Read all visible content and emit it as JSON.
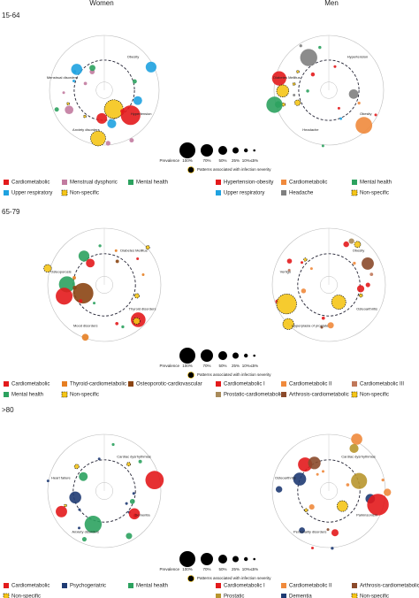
{
  "headers": {
    "women": "Women",
    "men": "Men"
  },
  "panels": [
    {
      "age": "15-64",
      "size_legend": {
        "title": "Prevalence",
        "labels": [
          "100%",
          "70%",
          "50%",
          "25%",
          "10%",
          "≤5%"
        ],
        "severity": "Patterns associated with infection severity"
      },
      "women": {
        "legend": [
          {
            "label": "Cardiometabolic",
            "color": "#e31a1c"
          },
          {
            "label": "Menstrual dysphoric",
            "color": "#c27ba0"
          },
          {
            "label": "Mental health",
            "color": "#2ca25f"
          },
          {
            "label": "Upper respiratory",
            "color": "#1fa2e0"
          },
          {
            "label": "Non-specific",
            "color": "#f5c518"
          }
        ],
        "nodes": [
          "Obesity",
          "Hypertension",
          "Anxiety disorders",
          "Menstrual disorders"
        ]
      },
      "men": {
        "legend": [
          {
            "label": "Hypertension-obesity",
            "color": "#e31a1c"
          },
          {
            "label": "Cardiometabolic",
            "color": "#f08a3c"
          },
          {
            "label": "Mental health",
            "color": "#2ca25f"
          },
          {
            "label": "Upper respiratory",
            "color": "#1fa2e0"
          },
          {
            "label": "Headache",
            "color": "#7f7f7f"
          },
          {
            "label": "Non-specific",
            "color": "#f5c518"
          }
        ],
        "nodes": [
          "Hypertension",
          "Obesity",
          "Headache",
          "Diabetes Mellitus"
        ]
      }
    },
    {
      "age": "65-79",
      "size_legend": {
        "title": "Prevalence",
        "labels": [
          "100%",
          "70%",
          "50%",
          "25%",
          "10%",
          "≤5%"
        ],
        "severity": "Patterns associated with infection severity"
      },
      "women": {
        "legend": [
          {
            "label": "Cardiometabolic",
            "color": "#e31a1c"
          },
          {
            "label": "Thyroid-cardiometabolic",
            "color": "#e67e22"
          },
          {
            "label": "Osteoporotic-cardiovascular",
            "color": "#8b4513"
          },
          {
            "label": "Mental health",
            "color": "#2ca25f"
          },
          {
            "label": "Non-specific",
            "color": "#f5c518"
          }
        ],
        "nodes": [
          "Diabetes Mellitus",
          "Thyroid disorders",
          "Mood disorders",
          "Osteoporosis"
        ]
      },
      "men": {
        "legend": [
          {
            "label": "Cardiometabolic I",
            "color": "#e31a1c"
          },
          {
            "label": "Cardiometabolic II",
            "color": "#f08a3c"
          },
          {
            "label": "Cardiometabolic III",
            "color": "#c0785a"
          },
          {
            "label": "Prostatic-cardiometabolic",
            "color": "#a88a5a"
          },
          {
            "label": "Arthrosis-cardiometabolic",
            "color": "#8b4a2b"
          },
          {
            "label": "Non-specific",
            "color": "#f5c518"
          }
        ],
        "nodes": [
          "Obesity",
          "Osteoarthritis",
          "Hyperplasia of prostate",
          "Vertigo"
        ]
      }
    },
    {
      "age": ">80",
      "size_legend": {
        "title": "Prevalence",
        "labels": [
          "100%",
          "70%",
          "50%",
          "25%",
          "10%",
          "≤5%"
        ],
        "severity": "Patterns associated with infection severity"
      },
      "women": {
        "legend": [
          {
            "label": "Cardiometabolic",
            "color": "#e31a1c"
          },
          {
            "label": "Psychogeriatric",
            "color": "#1f3b73"
          },
          {
            "label": "Mental health",
            "color": "#2ca25f"
          },
          {
            "label": "Non-specific",
            "color": "#f5c518"
          }
        ],
        "nodes": [
          "Cardiac dysrhythmias",
          "Dementia",
          "Anxiety disorders",
          "Heart failure"
        ]
      },
      "men": {
        "legend": [
          {
            "label": "Cardiometabolic I",
            "color": "#e31a1c"
          },
          {
            "label": "Cardiometabolic II",
            "color": "#f08a3c"
          },
          {
            "label": "Arthrosis-cardiometabolic",
            "color": "#8b4a2b"
          },
          {
            "label": "Prostatic",
            "color": "#b8962e"
          },
          {
            "label": "Dementia",
            "color": "#1f3b73"
          },
          {
            "label": "Non-specific",
            "color": "#f5c518"
          }
        ],
        "nodes": [
          "Cardiac dysrhythmias",
          "Parkinsonism",
          "Personality disorders",
          "Osteoarthritis"
        ]
      }
    }
  ]
}
